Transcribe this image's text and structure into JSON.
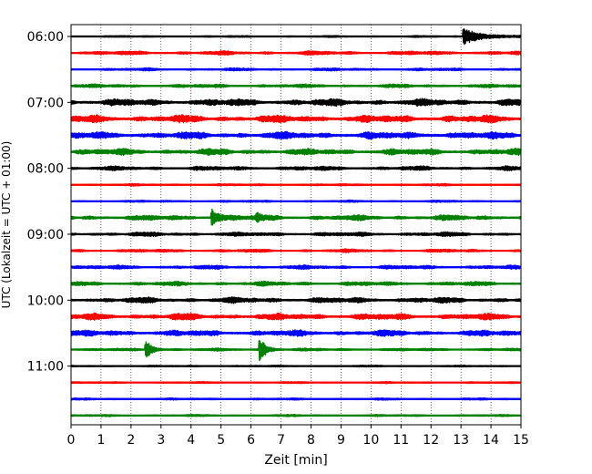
{
  "chart_data": {
    "type": "line",
    "title": "",
    "xlabel": "Zeit  [min]",
    "ylabel": "UTC (Lokalzeit = UTC + 01:00)",
    "xlim": [
      0,
      15
    ],
    "x_ticks": [
      0,
      1,
      2,
      3,
      4,
      5,
      6,
      7,
      8,
      9,
      10,
      11,
      12,
      13,
      14,
      15
    ],
    "y_tick_labels": [
      "06:00",
      "07:00",
      "08:00",
      "09:00",
      "10:00",
      "11:00"
    ],
    "y_tick_rows": [
      0,
      4,
      8,
      12,
      16,
      20
    ],
    "grid": "vertical dotted",
    "colors": [
      "#000000",
      "#ff0000",
      "#0000ff",
      "#008000"
    ],
    "rows": [
      {
        "start": "06:00",
        "color": "#000000",
        "amp": 1.0,
        "events": [
          {
            "t": 13.1,
            "amp": 9,
            "decay": 0.55
          }
        ]
      },
      {
        "start": "06:15",
        "color": "#ff0000",
        "amp": 2.2,
        "events": []
      },
      {
        "start": "06:30",
        "color": "#0000ff",
        "amp": 1.6,
        "events": []
      },
      {
        "start": "06:45",
        "color": "#008000",
        "amp": 2.0,
        "events": []
      },
      {
        "start": "07:00",
        "color": "#000000",
        "amp": 4.0,
        "events": []
      },
      {
        "start": "07:15",
        "color": "#ff0000",
        "amp": 4.2,
        "events": []
      },
      {
        "start": "07:30",
        "color": "#0000ff",
        "amp": 4.0,
        "events": []
      },
      {
        "start": "07:45",
        "color": "#008000",
        "amp": 3.6,
        "events": []
      },
      {
        "start": "08:00",
        "color": "#000000",
        "amp": 2.4,
        "events": []
      },
      {
        "start": "08:15",
        "color": "#ff0000",
        "amp": 1.2,
        "events": []
      },
      {
        "start": "08:30",
        "color": "#0000ff",
        "amp": 1.2,
        "events": []
      },
      {
        "start": "08:45",
        "color": "#008000",
        "amp": 3.0,
        "events": [
          {
            "t": 4.7,
            "amp": 10,
            "decay": 0.2
          },
          {
            "t": 6.2,
            "amp": 4,
            "decay": 0.15
          }
        ]
      },
      {
        "start": "09:00",
        "color": "#000000",
        "amp": 2.4,
        "events": []
      },
      {
        "start": "09:15",
        "color": "#ff0000",
        "amp": 1.8,
        "events": []
      },
      {
        "start": "09:30",
        "color": "#0000ff",
        "amp": 2.2,
        "events": []
      },
      {
        "start": "09:45",
        "color": "#008000",
        "amp": 2.4,
        "events": []
      },
      {
        "start": "10:00",
        "color": "#000000",
        "amp": 3.2,
        "events": []
      },
      {
        "start": "10:15",
        "color": "#ff0000",
        "amp": 3.6,
        "events": []
      },
      {
        "start": "10:30",
        "color": "#0000ff",
        "amp": 3.4,
        "events": []
      },
      {
        "start": "10:45",
        "color": "#008000",
        "amp": 1.6,
        "events": [
          {
            "t": 2.5,
            "amp": 11,
            "decay": 0.2
          },
          {
            "t": 6.3,
            "amp": 13,
            "decay": 0.2
          }
        ]
      },
      {
        "start": "11:00",
        "color": "#000000",
        "amp": 1.0,
        "events": []
      },
      {
        "start": "11:15",
        "color": "#ff0000",
        "amp": 1.0,
        "events": []
      },
      {
        "start": "11:30",
        "color": "#0000ff",
        "amp": 1.2,
        "events": []
      },
      {
        "start": "11:45",
        "color": "#008000",
        "amp": 1.2,
        "events": []
      }
    ]
  }
}
